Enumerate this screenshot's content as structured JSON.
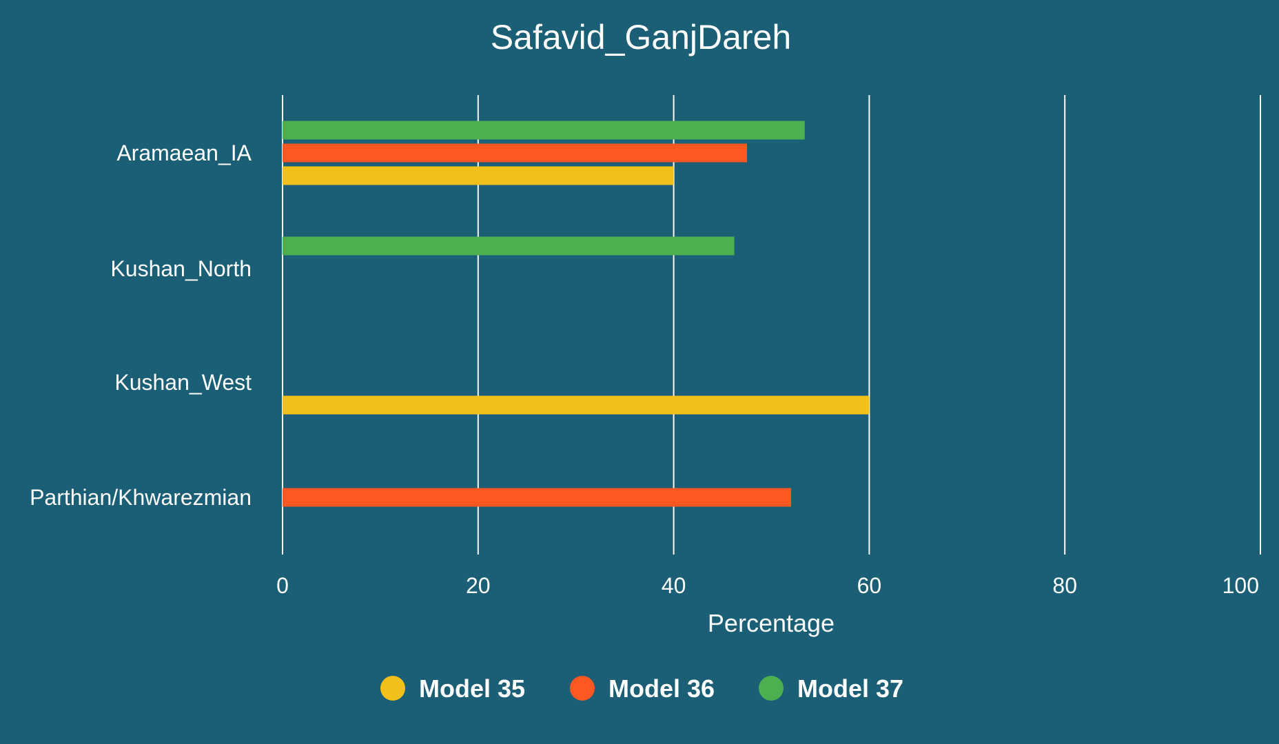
{
  "chart_data": {
    "type": "bar",
    "orientation": "horizontal",
    "title": "Safavid_GanjDareh",
    "xlabel": "Percentage",
    "ylabel": "",
    "xlim": [
      0,
      100
    ],
    "x_ticks": [
      "0",
      "20",
      "40",
      "60",
      "80",
      "100"
    ],
    "categories": [
      "Aramaean_IA",
      "Kushan_North",
      "Kushan_West",
      "Parthian/Khwarezmian"
    ],
    "series": [
      {
        "name": "Model 35",
        "color": "#F2C01A",
        "values": [
          40,
          null,
          60,
          null
        ]
      },
      {
        "name": "Model 36",
        "color": "#FF5722",
        "values": [
          47.5,
          null,
          null,
          52
        ]
      },
      {
        "name": "Model 37",
        "color": "#4CAF50",
        "values": [
          53.4,
          46.2,
          null,
          null
        ]
      }
    ],
    "grid": "vertical",
    "legend_position": "bottom-center",
    "background_color": "#1A5F75"
  }
}
